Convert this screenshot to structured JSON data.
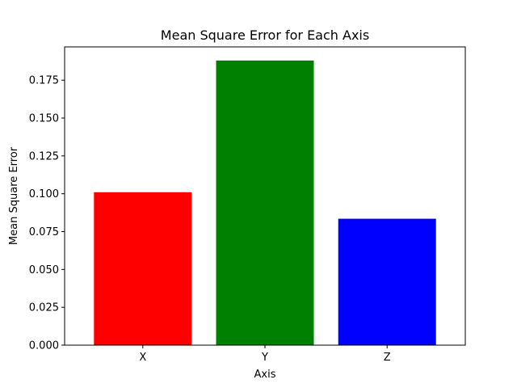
{
  "chart_data": {
    "type": "bar",
    "title": "Mean Square Error for Each Axis",
    "xlabel": "Axis",
    "ylabel": "Mean Square Error",
    "categories": [
      "X",
      "Y",
      "Z"
    ],
    "values": [
      0.101,
      0.188,
      0.0835
    ],
    "colors": [
      "#ff0000",
      "#008000",
      "#0000ff"
    ],
    "ylim": [
      0,
      0.197
    ],
    "yticks": [
      0.0,
      0.025,
      0.05,
      0.075,
      0.1,
      0.125,
      0.15,
      0.175
    ],
    "ytick_labels": [
      "0.000",
      "0.025",
      "0.050",
      "0.075",
      "0.100",
      "0.125",
      "0.150",
      "0.175"
    ],
    "grid": false,
    "legend": false
  }
}
